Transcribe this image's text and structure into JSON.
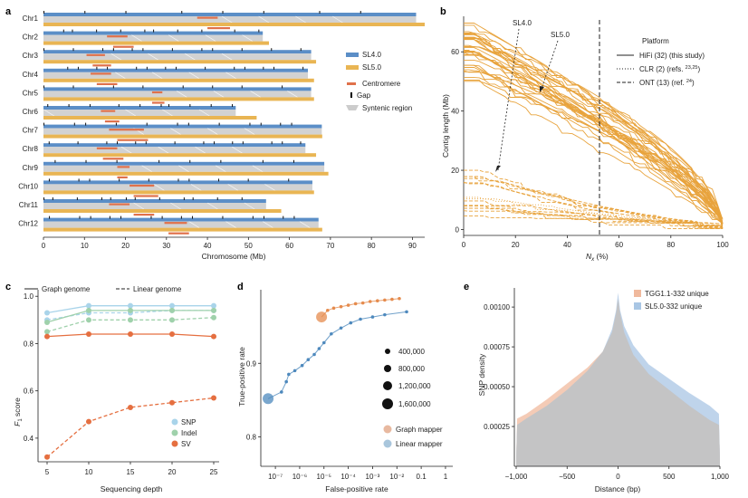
{
  "panels": {
    "a": "a",
    "b": "b",
    "c": "c",
    "d": "d",
    "e": "e"
  },
  "chart_data": [
    {
      "panel": "a",
      "type": "bar",
      "xlabel": "Chromosome (Mb)",
      "xticks": [
        0,
        10,
        20,
        30,
        40,
        50,
        60,
        70,
        80,
        90
      ],
      "xlim": [
        0,
        93
      ],
      "legend": {
        "sl4": "SL4.0",
        "sl5": "SL5.0",
        "centromere": "Centromere",
        "gap": "Gap",
        "syntenic": "Syntenic region"
      },
      "colors": {
        "sl4": "#5b8ec7",
        "sl5": "#e9b553",
        "centromere": "#e0714b",
        "syntenic": "#cccccc"
      },
      "chromosomes": [
        {
          "name": "Chr1",
          "sl4": 90.9,
          "sl5": 93.0,
          "cen4": [
            37.5,
            42.5
          ],
          "cen5": [
            40.0,
            45.5
          ]
        },
        {
          "name": "Chr2",
          "sl4": 53.5,
          "sl5": 55.0,
          "cen4": [
            15.5,
            20.5
          ],
          "cen5": [
            17.0,
            22.0
          ]
        },
        {
          "name": "Chr3",
          "sl4": 65.3,
          "sl5": 66.5,
          "cen4": [
            10.5,
            15.0
          ],
          "cen5": [
            12.0,
            16.5
          ]
        },
        {
          "name": "Chr4",
          "sl4": 64.5,
          "sl5": 66.0,
          "cen4": [
            11.5,
            16.5
          ],
          "cen5": [
            13.0,
            18.0
          ]
        },
        {
          "name": "Chr5",
          "sl4": 65.3,
          "sl5": 66.0,
          "cen4": [
            26.5,
            29.0
          ],
          "cen5": [
            26.5,
            29.5
          ]
        },
        {
          "name": "Chr6",
          "sl4": 46.9,
          "sl5": 52.0,
          "cen4": [
            14.0,
            17.5
          ],
          "cen5": [
            15.0,
            18.5
          ]
        },
        {
          "name": "Chr7",
          "sl4": 67.9,
          "sl5": 68.0,
          "cen4": [
            16.0,
            24.5
          ],
          "cen5": [
            18.0,
            25.5
          ]
        },
        {
          "name": "Chr8",
          "sl4": 63.9,
          "sl5": 66.5,
          "cen4": [
            13.0,
            18.0
          ],
          "cen5": [
            14.5,
            19.5
          ]
        },
        {
          "name": "Chr9",
          "sl4": 68.5,
          "sl5": 69.5,
          "cen4": [
            18.0,
            21.0
          ],
          "cen5": [
            18.0,
            20.5
          ]
        },
        {
          "name": "Chr10",
          "sl4": 65.6,
          "sl5": 66.0,
          "cen4": [
            21.0,
            27.0
          ],
          "cen5": [
            22.0,
            28.0
          ]
        },
        {
          "name": "Chr11",
          "sl4": 54.3,
          "sl5": 58.0,
          "cen4": [
            16.0,
            21.0
          ],
          "cen5": [
            22.0,
            27.0
          ]
        },
        {
          "name": "Chr12",
          "sl4": 67.1,
          "sl5": 68.0,
          "cen4": [
            29.5,
            35.0
          ],
          "cen5": [
            30.5,
            35.5
          ]
        }
      ]
    },
    {
      "panel": "b",
      "type": "line",
      "ylabel": "Contig length (Mb)",
      "xlabel_main": "N",
      "xlabel_sub": "x",
      "xlabel_unit": " (%)",
      "xticks": [
        0,
        20,
        40,
        60,
        80,
        100
      ],
      "yticks": [
        0,
        20,
        40,
        60
      ],
      "xlim": [
        0,
        100
      ],
      "ylim": [
        -2,
        72
      ],
      "nx_marker": 50,
      "annotations": {
        "sl4": "SL4.0",
        "sl5": "SL5.0"
      },
      "legend_title": "Platform",
      "legend": [
        {
          "style": "solid",
          "label": "HiFi (32) (this study)"
        },
        {
          "style": "dotted",
          "label": "CLR (2) (refs. ",
          "sup": "23,25",
          "tail": ")"
        },
        {
          "style": "dashed",
          "label": "ONT (13) (ref. ",
          "sup": "24",
          "tail": ")"
        }
      ],
      "color": "#e8a33c",
      "hifi_assemblies": 32,
      "clr_assemblies": 2,
      "ont_assemblies": 13
    },
    {
      "panel": "c",
      "type": "line",
      "ylabel": "F₁ score",
      "ylabel_main": "F",
      "ylabel_sub": "1",
      "ylabel_tail": " score",
      "xlabel": "Sequencing depth",
      "x": [
        5,
        10,
        15,
        20,
        25
      ],
      "yticks": [
        0.4,
        0.6,
        0.8,
        1.0
      ],
      "ylim": [
        0.3,
        1.02
      ],
      "legend_lines": {
        "graph": "Graph genome",
        "linear": "Linear genome"
      },
      "series": [
        {
          "name": "SNP",
          "color": "#a9d4ea",
          "graph": [
            0.93,
            0.96,
            0.96,
            0.96,
            0.96
          ],
          "linear": [
            0.9,
            0.93,
            0.93,
            0.94,
            0.94
          ]
        },
        {
          "name": "Indel",
          "color": "#9fd1ab",
          "graph": [
            0.89,
            0.94,
            0.94,
            0.94,
            0.94
          ],
          "linear": [
            0.85,
            0.9,
            0.9,
            0.9,
            0.91
          ]
        },
        {
          "name": "SV",
          "color": "#e56f40",
          "graph": [
            0.83,
            0.84,
            0.84,
            0.84,
            0.83
          ],
          "linear": [
            0.32,
            0.47,
            0.53,
            0.55,
            0.57
          ]
        }
      ]
    },
    {
      "panel": "d",
      "type": "scatter",
      "xlabel": "False-positive rate",
      "ylabel": "True-positive rate",
      "xticks": [
        "10⁻⁷",
        "10⁻⁶",
        "10⁻⁵",
        "10⁻⁴",
        "10⁻³",
        "10⁻²",
        "0.1",
        "1"
      ],
      "xtick_exps": [
        -7,
        -6,
        -5,
        -4,
        -3,
        -2,
        -1,
        0
      ],
      "yticks": [
        0.8,
        0.9
      ],
      "xlim_log10": [
        -7.6,
        0.3
      ],
      "ylim": [
        0.76,
        1.0
      ],
      "size_legend": [
        "400,000",
        "800,000",
        "1,200,000",
        "1,600,000"
      ],
      "series": [
        {
          "name": "Graph mapper",
          "color": "#e58b4d",
          "log10_fpr": [
            -5.1,
            -4.85,
            -4.6,
            -4.3,
            -4.0,
            -3.7,
            -3.4,
            -3.1,
            -2.8,
            -2.5,
            -2.2,
            -1.9
          ],
          "tpr": [
            0.963,
            0.972,
            0.975,
            0.977,
            0.979,
            0.981,
            0.982,
            0.984,
            0.985,
            0.986,
            0.987,
            0.988
          ]
        },
        {
          "name": "Linear mapper",
          "color": "#4e89bd",
          "log10_fpr": [
            -7.3,
            -6.75,
            -6.55,
            -6.45,
            -6.2,
            -5.9,
            -5.65,
            -5.4,
            -5.2,
            -5.0,
            -4.7,
            -4.3,
            -3.9,
            -3.5,
            -3.0,
            -2.5,
            -1.6
          ],
          "tpr": [
            0.852,
            0.861,
            0.875,
            0.885,
            0.89,
            0.897,
            0.905,
            0.912,
            0.92,
            0.928,
            0.94,
            0.948,
            0.955,
            0.96,
            0.963,
            0.966,
            0.97
          ]
        }
      ]
    },
    {
      "panel": "e",
      "type": "area",
      "xlabel": "Distance (bp)",
      "ylabel": "SNP density",
      "xticks": [
        "−1,000",
        "−500",
        "0",
        "500",
        "1,000"
      ],
      "xtick_vals": [
        -1000,
        -500,
        0,
        500,
        1000
      ],
      "yticks": [
        "0.00025",
        "0.00050",
        "0.00075",
        "0.00100"
      ],
      "ytick_vals": [
        0.00025,
        0.0005,
        0.00075,
        0.001
      ],
      "xlim": [
        -1000,
        1000
      ],
      "ylim": [
        0,
        0.00112
      ],
      "series": [
        {
          "name": "TGG1.1-332 unique",
          "color": "#f0b99d",
          "x": [
            -1000,
            -990,
            -900,
            -700,
            -500,
            -300,
            -150,
            -60,
            -20,
            0,
            20,
            60,
            150,
            300,
            500,
            700,
            900,
            990,
            1000
          ],
          "y": [
            5e-05,
            0.0003,
            0.00033,
            0.00042,
            0.00052,
            0.00062,
            0.00072,
            0.00084,
            0.00096,
            0.00105,
            0.00096,
            0.00084,
            0.0007,
            0.00058,
            0.00048,
            0.00038,
            0.00029,
            0.00026,
            5e-05
          ]
        },
        {
          "name": "SL5.0-332 unique",
          "color": "#a9c6e4",
          "x": [
            -1000,
            -990,
            -900,
            -700,
            -500,
            -300,
            -150,
            -60,
            -20,
            0,
            20,
            60,
            150,
            300,
            500,
            700,
            900,
            990,
            1000
          ],
          "y": [
            5e-05,
            0.00026,
            0.0003,
            0.00038,
            0.00048,
            0.0006,
            0.00072,
            0.00086,
            0.00098,
            0.00109,
            0.00098,
            0.00088,
            0.00076,
            0.00064,
            0.00055,
            0.00046,
            0.00038,
            0.00033,
            5e-05
          ]
        }
      ]
    }
  ]
}
